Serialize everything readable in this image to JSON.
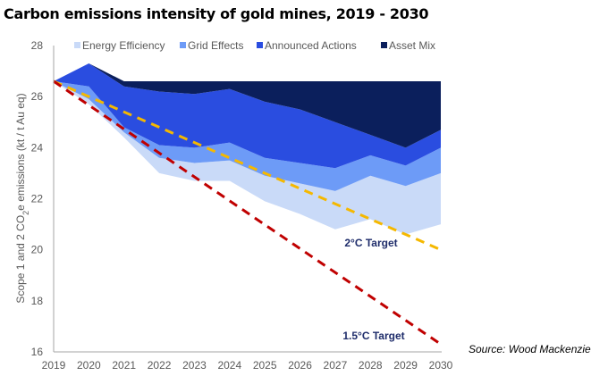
{
  "title": "Carbon emissions intensity of gold mines, 2019 - 2030",
  "source": "Source: Wood Mackenzie",
  "chart_data": {
    "type": "area",
    "title": "Carbon emissions intensity of gold mines, 2019 - 2030",
    "xlabel": "",
    "ylabel": "Scope 1 and 2 CO2e emissions (kt / t Au eq)",
    "ylabel_parts": {
      "pre": "Scope 1 and 2 CO",
      "sub": "2",
      "post": "e emissions (kt / t Au eq)"
    },
    "x": [
      2019,
      2020,
      2021,
      2022,
      2023,
      2024,
      2025,
      2026,
      2027,
      2028,
      2029,
      2030
    ],
    "xticks": [
      "2019",
      "2020",
      "2021",
      "2022",
      "2023",
      "2024",
      "2025",
      "2026",
      "2027",
      "2028",
      "2029",
      "2030"
    ],
    "ylim": [
      16,
      28
    ],
    "yticks": [
      "16",
      "18",
      "20",
      "22",
      "24",
      "26",
      "28"
    ],
    "grid": false,
    "legend_position": "top",
    "baseline_bottom": [
      26.6,
      25.7,
      24.4,
      23.0,
      22.7,
      22.7,
      21.9,
      21.4,
      20.8,
      21.2,
      20.6,
      21.0
    ],
    "series": [
      {
        "name": "Energy Efficiency",
        "color": "#c9daf8",
        "upper": [
          26.6,
          25.9,
          24.6,
          23.6,
          23.4,
          23.5,
          22.9,
          22.6,
          22.3,
          22.9,
          22.5,
          23.0
        ]
      },
      {
        "name": "Grid Effects",
        "color": "#6d9bf7",
        "upper": [
          26.6,
          26.4,
          24.8,
          24.1,
          24.0,
          24.2,
          23.6,
          23.4,
          23.2,
          23.7,
          23.3,
          24.0
        ]
      },
      {
        "name": "Announced Actions",
        "color": "#2a4de0",
        "upper": [
          26.6,
          27.3,
          26.4,
          26.2,
          26.1,
          26.3,
          25.8,
          25.5,
          25.0,
          24.5,
          24.0,
          24.7
        ]
      },
      {
        "name": "Asset Mix",
        "color": "#0b1f5c",
        "upper": [
          26.6,
          27.3,
          26.6,
          26.6,
          26.6,
          26.6,
          26.6,
          26.6,
          26.6,
          26.6,
          26.6,
          26.6
        ]
      }
    ],
    "targets": [
      {
        "name": "2°C Target",
        "color": "#f5b800",
        "start": 26.6,
        "end": 20.0,
        "label": "2°C Target"
      },
      {
        "name": "1.5°C Target",
        "color": "#c00000",
        "start": 26.6,
        "end": 16.3,
        "label": "1.5°C Target"
      }
    ]
  }
}
